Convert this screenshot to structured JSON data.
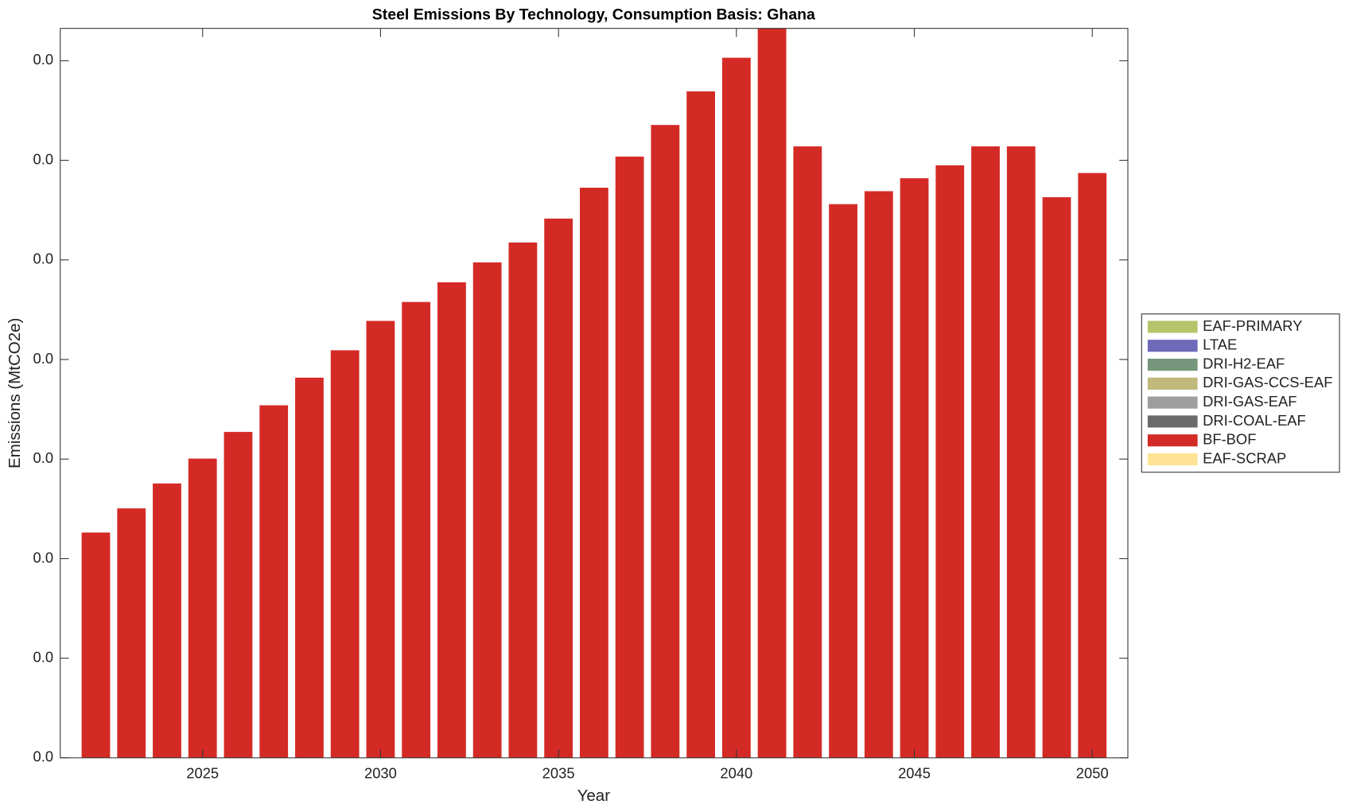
{
  "chart_data": {
    "type": "stacked-bar",
    "title": "Steel Emissions By Technology, Consumption Basis: Ghana",
    "xlabel": "Year",
    "ylabel": "Emissions (MtCO2e)",
    "x": [
      2022,
      2023,
      2024,
      2025,
      2026,
      2027,
      2028,
      2029,
      2030,
      2031,
      2032,
      2033,
      2034,
      2035,
      2036,
      2037,
      2038,
      2039,
      2040,
      2041,
      2042,
      2043,
      2044,
      2045,
      2046,
      2047,
      2048,
      2049,
      2050
    ],
    "xlim": [
      2021,
      2051
    ],
    "xticks": [
      2025,
      2030,
      2035,
      2040,
      2045,
      2050
    ],
    "ylim": [
      0,
      0.0293
    ],
    "yticks": [
      {
        "value": 0,
        "label": "0.0"
      },
      {
        "value": 0.004,
        "label": "0.0"
      },
      {
        "value": 0.008,
        "label": "0.0"
      },
      {
        "value": 0.012,
        "label": "0.0"
      },
      {
        "value": 0.016,
        "label": "0.0"
      },
      {
        "value": 0.02,
        "label": "0.0"
      },
      {
        "value": 0.024,
        "label": "0.0"
      },
      {
        "value": 0.028,
        "label": "0.0"
      }
    ],
    "grid": false,
    "legend": "right",
    "series": [
      {
        "name": "EAF-PRIMARY",
        "color": "#b7c36a",
        "values": [
          0,
          0,
          0,
          0,
          0,
          0,
          0,
          0,
          0,
          0,
          0,
          0,
          0,
          0,
          0,
          0,
          0,
          0,
          0,
          0,
          0,
          0,
          0,
          0,
          0,
          0,
          0,
          0,
          0
        ]
      },
      {
        "name": "LTAE",
        "color": "#6e6ab8",
        "values": [
          0,
          0,
          0,
          0,
          0,
          0,
          0,
          0,
          0,
          0,
          0,
          0,
          0,
          0,
          0,
          0,
          0,
          0,
          0,
          0,
          0,
          0,
          0,
          0,
          0,
          0,
          0,
          0,
          0
        ]
      },
      {
        "name": "DRI-H2-EAF",
        "color": "#75967a",
        "values": [
          0,
          0,
          0,
          0,
          0,
          0,
          0,
          0,
          0,
          0,
          0,
          0,
          0,
          0,
          0,
          0,
          0,
          0,
          0,
          0,
          0,
          0,
          0,
          0,
          0,
          0,
          0,
          0,
          0
        ]
      },
      {
        "name": "DRI-GAS-CCS-EAF",
        "color": "#c1b87c",
        "values": [
          0,
          0,
          0,
          0,
          0,
          0,
          0,
          0,
          0,
          0,
          0,
          0,
          0,
          0,
          0,
          0,
          0,
          0,
          0,
          0,
          0,
          0,
          0,
          0,
          0,
          0,
          0,
          0,
          0
        ]
      },
      {
        "name": "DRI-GAS-EAF",
        "color": "#9e9e9e",
        "values": [
          0,
          0,
          0,
          0,
          0,
          0,
          0,
          0,
          0,
          0,
          0,
          0,
          0,
          0,
          0,
          0,
          0,
          0,
          0,
          0,
          0,
          0,
          0,
          0,
          0,
          0,
          0,
          0,
          0
        ]
      },
      {
        "name": "DRI-COAL-EAF",
        "color": "#6b6b6b",
        "values": [
          0,
          0,
          0,
          0,
          0,
          0,
          0,
          0,
          0,
          0,
          0,
          0,
          0,
          0,
          0,
          0,
          0,
          0,
          0,
          0,
          0,
          0,
          0,
          0,
          0,
          0,
          0,
          0,
          0
        ]
      },
      {
        "name": "BF-BOF",
        "color": "#d42a25",
        "values": [
          0.00905,
          0.01002,
          0.01102,
          0.01202,
          0.01309,
          0.01416,
          0.01527,
          0.01637,
          0.01755,
          0.01831,
          0.0191,
          0.0199,
          0.0207,
          0.02166,
          0.0229,
          0.02415,
          0.02542,
          0.02677,
          0.02812,
          0.0294,
          0.02456,
          0.02224,
          0.02276,
          0.02328,
          0.0238,
          0.02456,
          0.02456,
          0.02252,
          0.02349
        ]
      },
      {
        "name": "EAF-SCRAP",
        "color": "#fde393",
        "values": [
          0,
          0,
          0,
          0,
          0,
          0,
          0,
          0,
          0,
          0,
          0,
          0,
          0,
          0,
          0,
          0,
          0,
          0,
          0,
          0,
          0,
          0,
          0,
          0,
          0,
          0,
          0,
          0,
          0
        ]
      }
    ]
  }
}
